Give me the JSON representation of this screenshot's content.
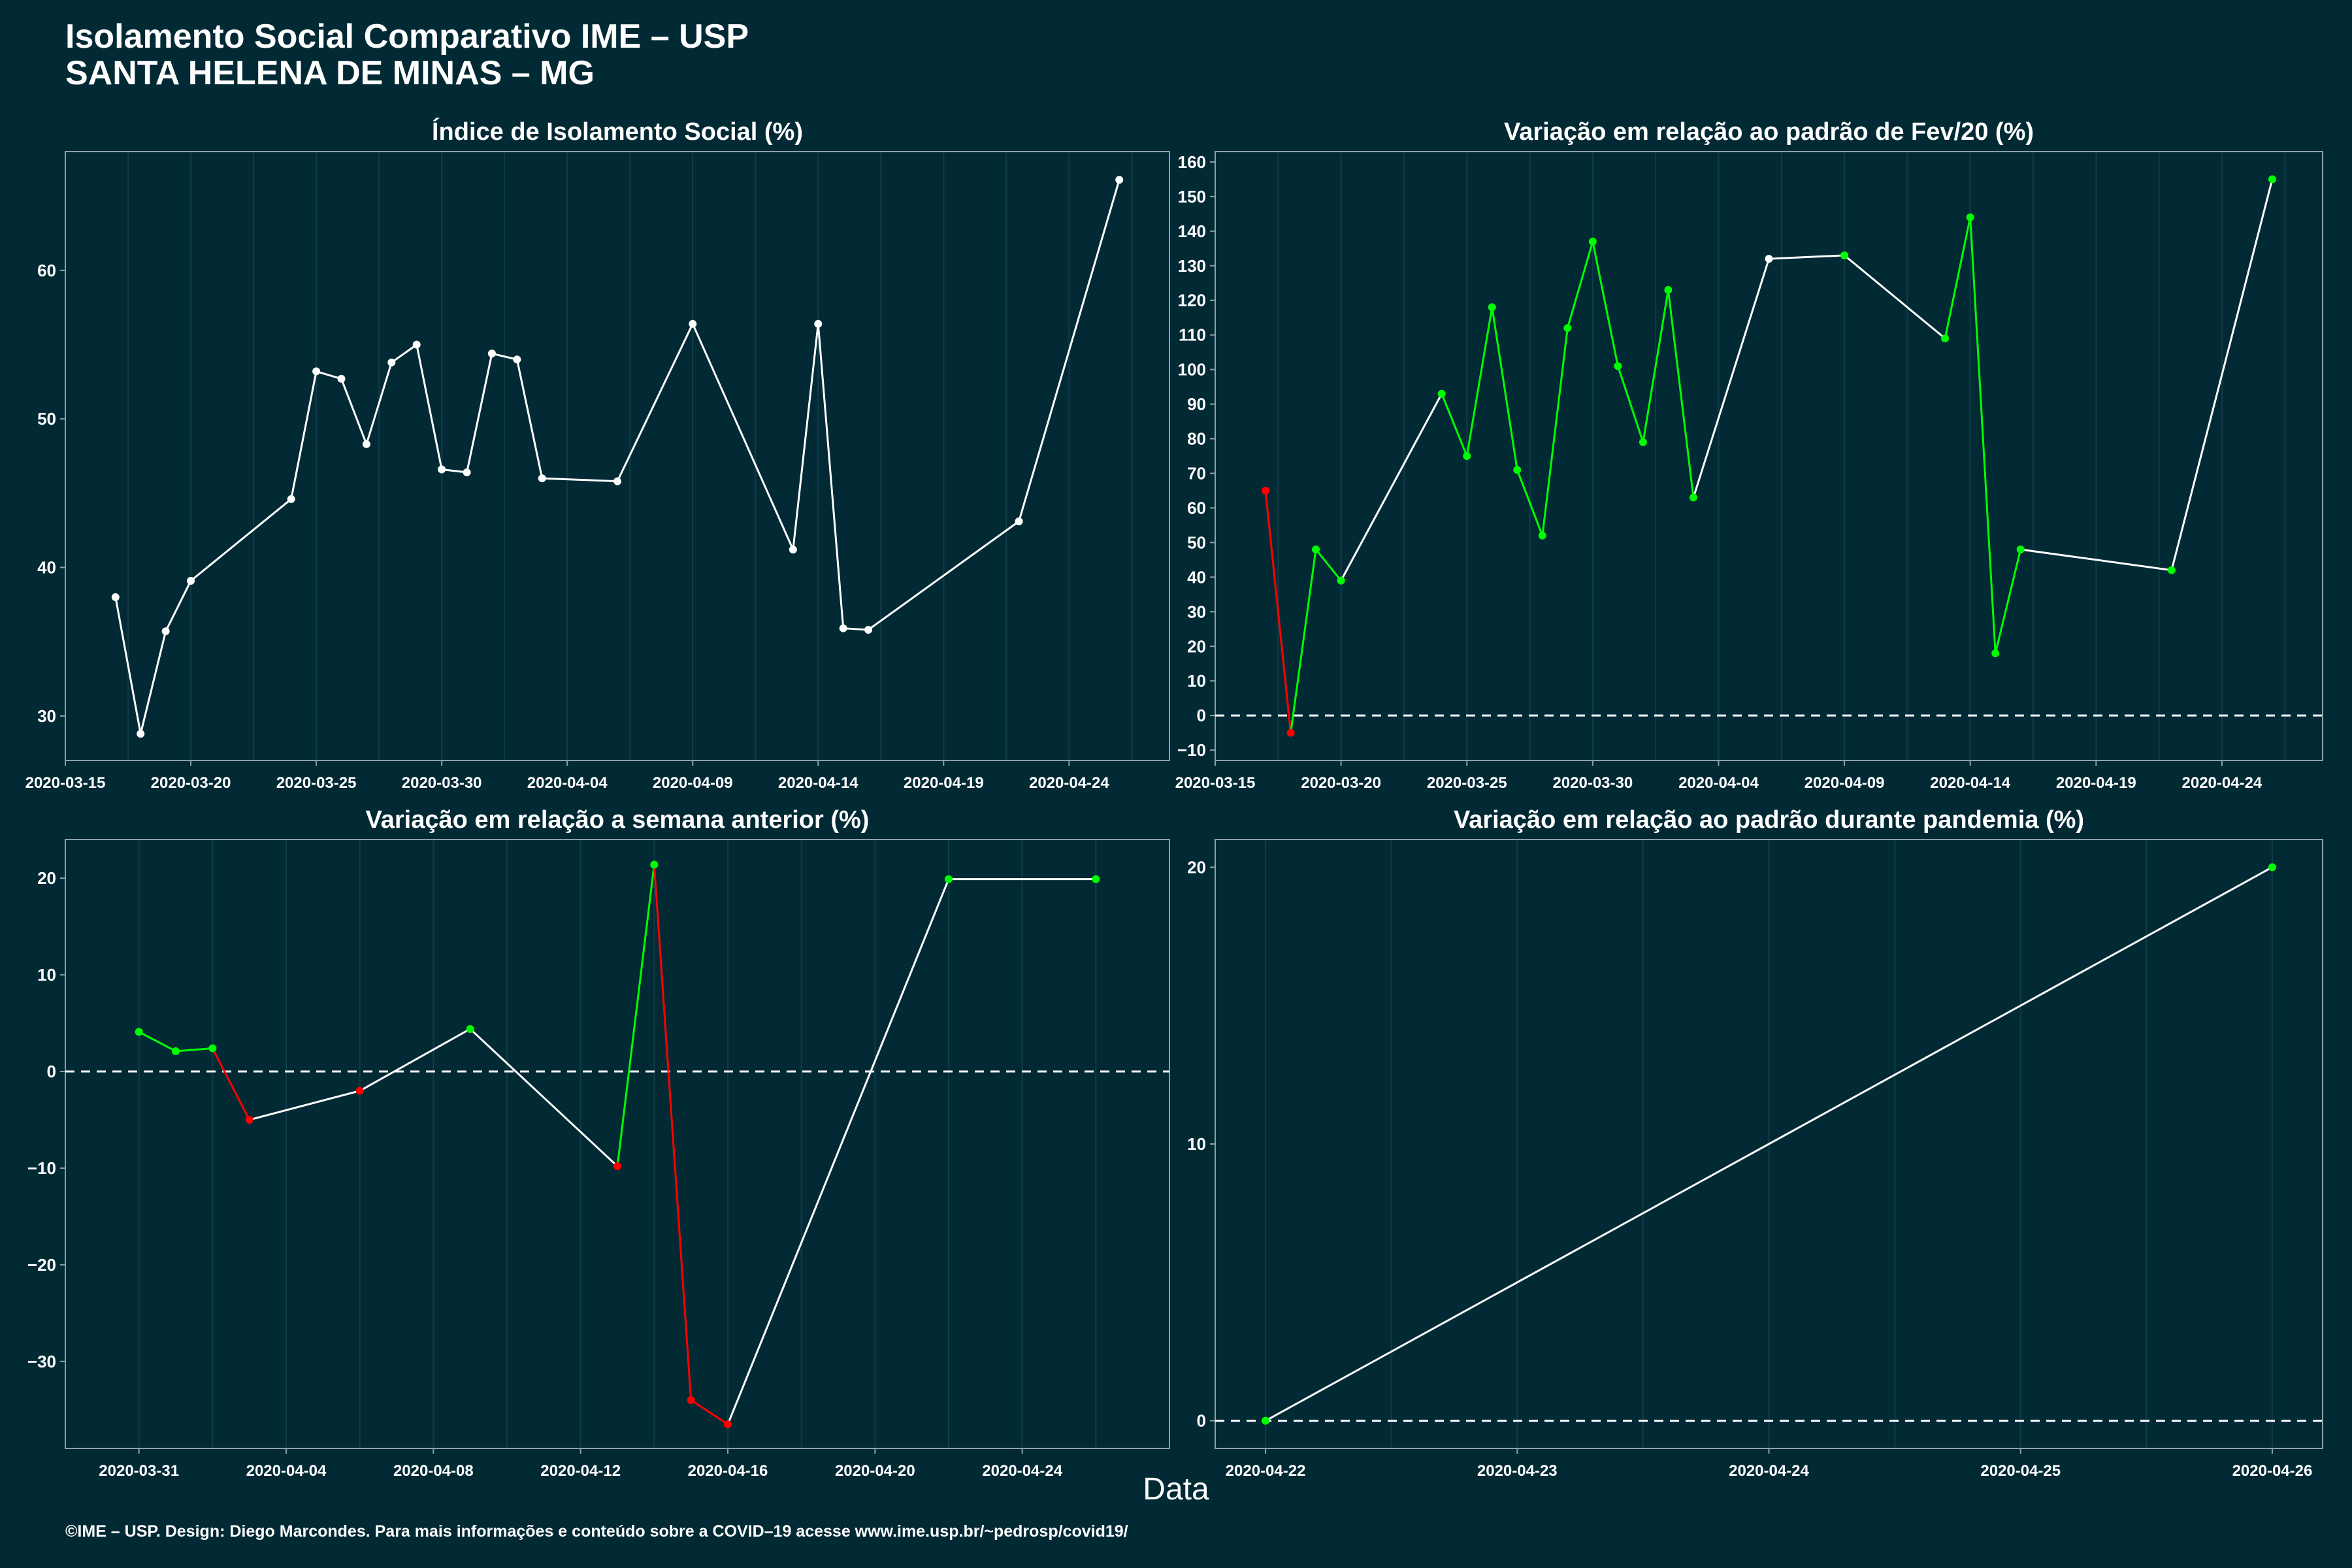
{
  "title": {
    "line1": "Isolamento Social Comparativo IME – USP",
    "line2": "SANTA HELENA DE MINAS – MG"
  },
  "xlabel": "Data",
  "footer": "©IME – USP. Design: Diego Marcondes. Para mais informações e conteúdo sobre a COVID–19 acesse www.ime.usp.br/~pedrosp/covid19/",
  "colors": {
    "background": "#022a35",
    "line": "#ffffff",
    "up": "#00ff00",
    "down": "#ff0000",
    "grid": "#0f3d47",
    "axis": "#8aa2a8"
  },
  "chart_data": [
    {
      "type": "line",
      "title": "Índice de Isolamento Social (%)",
      "xlabel": "",
      "ylabel": "",
      "xlim": [
        "2020-03-15",
        "2020-04-28"
      ],
      "ylim": [
        27,
        68
      ],
      "xticks": [
        "2020-03-15",
        "2020-03-20",
        "2020-03-25",
        "2020-03-30",
        "2020-04-04",
        "2020-04-09",
        "2020-04-14",
        "2020-04-19",
        "2020-04-24"
      ],
      "yticks": [
        30,
        40,
        50,
        60
      ],
      "x": [
        "2020-03-17",
        "2020-03-18",
        "2020-03-19",
        "2020-03-20",
        "2020-03-24",
        "2020-03-25",
        "2020-03-26",
        "2020-03-27",
        "2020-03-28",
        "2020-03-29",
        "2020-03-30",
        "2020-03-31",
        "2020-04-01",
        "2020-04-02",
        "2020-04-03",
        "2020-04-06",
        "2020-04-09",
        "2020-04-13",
        "2020-04-14",
        "2020-04-15",
        "2020-04-16",
        "2020-04-22",
        "2020-04-26"
      ],
      "values": [
        38.0,
        28.8,
        35.7,
        39.1,
        44.6,
        53.2,
        52.7,
        48.3,
        53.8,
        55.0,
        46.6,
        46.4,
        54.4,
        54.0,
        46.0,
        45.8,
        56.4,
        41.2,
        56.4,
        35.9,
        35.8,
        43.1,
        66.1
      ],
      "colors": [
        "#ffffff",
        "#ffffff",
        "#ffffff",
        "#ffffff",
        "#ffffff",
        "#ffffff",
        "#ffffff",
        "#ffffff",
        "#ffffff",
        "#ffffff",
        "#ffffff",
        "#ffffff",
        "#ffffff",
        "#ffffff",
        "#ffffff",
        "#ffffff",
        "#ffffff",
        "#ffffff",
        "#ffffff",
        "#ffffff",
        "#ffffff",
        "#ffffff",
        "#ffffff"
      ],
      "zero_line": false
    },
    {
      "type": "line",
      "title": "Variação em relação ao padrão de Fev/20 (%)",
      "xlabel": "",
      "ylabel": "",
      "xlim": [
        "2020-03-15",
        "2020-04-28"
      ],
      "ylim": [
        -13,
        163
      ],
      "xticks": [
        "2020-03-15",
        "2020-03-20",
        "2020-03-25",
        "2020-03-30",
        "2020-04-04",
        "2020-04-09",
        "2020-04-14",
        "2020-04-19",
        "2020-04-24"
      ],
      "yticks": [
        -10,
        0,
        10,
        20,
        30,
        40,
        50,
        60,
        70,
        80,
        90,
        100,
        110,
        120,
        130,
        140,
        150,
        160
      ],
      "x": [
        "2020-03-17",
        "2020-03-18",
        "2020-03-19",
        "2020-03-20",
        "2020-03-24",
        "2020-03-25",
        "2020-03-26",
        "2020-03-27",
        "2020-03-28",
        "2020-03-29",
        "2020-03-30",
        "2020-03-31",
        "2020-04-01",
        "2020-04-02",
        "2020-04-03",
        "2020-04-06",
        "2020-04-09",
        "2020-04-13",
        "2020-04-14",
        "2020-04-15",
        "2020-04-16",
        "2020-04-22",
        "2020-04-26"
      ],
      "values": [
        65,
        -5,
        48,
        39,
        93,
        75,
        118,
        71,
        52,
        112,
        137,
        101,
        79,
        123,
        63,
        132,
        133,
        109,
        144,
        18,
        48,
        42,
        155
      ],
      "colors": [
        "#ff0000",
        "#ff0000",
        "#00ff00",
        "#00ff00",
        "#00ff00",
        "#00ff00",
        "#00ff00",
        "#00ff00",
        "#00ff00",
        "#00ff00",
        "#00ff00",
        "#00ff00",
        "#00ff00",
        "#00ff00",
        "#00ff00",
        "#ffffff",
        "#00ff00",
        "#00ff00",
        "#00ff00",
        "#00ff00",
        "#00ff00",
        "#00ff00",
        "#00ff00"
      ],
      "segments": [
        "#ff0000",
        "#00ff00",
        "#00ff00",
        "#ffffff",
        "#00ff00",
        "#00ff00",
        "#00ff00",
        "#00ff00",
        "#00ff00",
        "#00ff00",
        "#00ff00",
        "#00ff00",
        "#00ff00",
        "#00ff00",
        "#ffffff",
        "#ffffff",
        "#ffffff",
        "#00ff00",
        "#00ff00",
        "#00ff00",
        "#ffffff",
        "#ffffff"
      ],
      "zero_line": true
    },
    {
      "type": "line",
      "title": "Variação em relação a semana anterior (%)",
      "xlabel": "",
      "ylabel": "",
      "xlim": [
        "2020-03-29",
        "2020-04-28"
      ],
      "ylim": [
        -39,
        24
      ],
      "xticks": [
        "2020-03-31",
        "2020-04-04",
        "2020-04-08",
        "2020-04-12",
        "2020-04-16",
        "2020-04-20",
        "2020-04-24"
      ],
      "yticks": [
        -30,
        -20,
        -10,
        0,
        10,
        20
      ],
      "x": [
        "2020-03-31",
        "2020-04-01",
        "2020-04-02",
        "2020-04-03",
        "2020-04-06",
        "2020-04-09",
        "2020-04-13",
        "2020-04-14",
        "2020-04-15",
        "2020-04-16",
        "2020-04-22",
        "2020-04-26"
      ],
      "values": [
        4.1,
        2.1,
        2.4,
        -5.0,
        -2.0,
        4.4,
        -9.8,
        21.4,
        -34.0,
        -36.5,
        19.9,
        19.9
      ],
      "colors": [
        "#00ff00",
        "#00ff00",
        "#00ff00",
        "#ff0000",
        "#ff0000",
        "#00ff00",
        "#ff0000",
        "#00ff00",
        "#ff0000",
        "#ff0000",
        "#00ff00",
        "#00ff00"
      ],
      "segments": [
        "#00ff00",
        "#00ff00",
        "#ff0000",
        "#ffffff",
        "#ffffff",
        "#ffffff",
        "#00ff00",
        "#ff0000",
        "#ff0000",
        "#ffffff",
        "#ffffff"
      ],
      "zero_line": true
    },
    {
      "type": "line",
      "title": "Variação em relação ao padrão durante pandemia (%)",
      "xlabel": "",
      "ylabel": "",
      "xlim": [
        "2020-04-21.8",
        "2020-04-26.2"
      ],
      "ylim": [
        -1,
        21
      ],
      "xticks": [
        "2020-04-22",
        "2020-04-23",
        "2020-04-24",
        "2020-04-25",
        "2020-04-26"
      ],
      "yticks": [
        0,
        10,
        20
      ],
      "x": [
        "2020-04-22",
        "2020-04-26"
      ],
      "values": [
        0,
        20
      ],
      "colors": [
        "#00ff00",
        "#00ff00"
      ],
      "segments": [
        "#ffffff"
      ],
      "zero_line": true
    }
  ]
}
